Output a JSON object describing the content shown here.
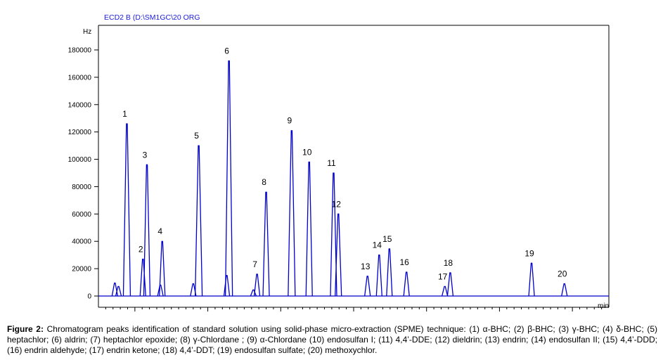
{
  "chart_data": {
    "type": "line",
    "title": "ECD2 B  (D:\\SM1GC\\20 ORG",
    "xlabel": "min",
    "ylabel": "Hz",
    "xlim": [
      13.0,
      27.0
    ],
    "ylim": [
      -2000,
      200000
    ],
    "x_ticks": [
      14,
      16,
      18,
      20,
      22,
      24,
      26
    ],
    "y_ticks": [
      0,
      20000,
      40000,
      60000,
      80000,
      100000,
      120000,
      140000,
      160000,
      180000
    ],
    "y_tick_labels": [
      "0",
      "20000",
      "40000",
      "60000",
      "80000",
      "100000",
      "120000",
      "140000",
      "160000",
      "180000"
    ],
    "grid": false,
    "colors": {
      "trace": "#0000cc",
      "axis": "#000000",
      "header": "#1a1adc",
      "baseline": "#0000cc"
    },
    "peaks": [
      {
        "label": "1",
        "x": 13.78,
        "y": 126000
      },
      {
        "label": "2",
        "x": 14.22,
        "y": 27000
      },
      {
        "label": "3",
        "x": 14.33,
        "y": 96000
      },
      {
        "label": "4",
        "x": 14.75,
        "y": 40000
      },
      {
        "label": "5",
        "x": 15.75,
        "y": 110000
      },
      {
        "label": "6",
        "x": 16.58,
        "y": 172000
      },
      {
        "label": "7",
        "x": 17.35,
        "y": 16000
      },
      {
        "label": "8",
        "x": 17.6,
        "y": 76000
      },
      {
        "label": "9",
        "x": 18.3,
        "y": 121000
      },
      {
        "label": "10",
        "x": 18.78,
        "y": 98000
      },
      {
        "label": "11",
        "x": 19.45,
        "y": 90000
      },
      {
        "label": "12",
        "x": 19.58,
        "y": 60000
      },
      {
        "label": "13",
        "x": 20.38,
        "y": 14500
      },
      {
        "label": "14",
        "x": 20.7,
        "y": 30000
      },
      {
        "label": "15",
        "x": 20.98,
        "y": 34500
      },
      {
        "label": "16",
        "x": 21.45,
        "y": 17500
      },
      {
        "label": "17",
        "x": 22.5,
        "y": 7000
      },
      {
        "label": "18",
        "x": 22.65,
        "y": 17000
      },
      {
        "label": "19",
        "x": 24.88,
        "y": 24000
      },
      {
        "label": "20",
        "x": 25.78,
        "y": 9000
      }
    ],
    "minor_peaks": [
      {
        "x": 13.45,
        "y": 9500
      },
      {
        "x": 13.55,
        "y": 7000
      },
      {
        "x": 14.7,
        "y": 8000
      },
      {
        "x": 15.6,
        "y": 9000
      },
      {
        "x": 16.52,
        "y": 15000
      },
      {
        "x": 17.25,
        "y": 4500
      }
    ]
  },
  "caption": {
    "prefix": "Figure 2:",
    "text": "Chromatogram peaks identification of standard solution using solid-phase micro-extraction (SPME) technique: (1) α-BHC; (2) β-BHC; (3) γ-BHC; (4) δ-BHC; (5) heptachlor; (6) aldrin; (7) heptachlor epoxide; (8) γ-Chlordane ; (9) α-Chlordane (10) endosulfan I; (11) 4,4’-DDE; (12) dieldrin; (13) endrin; (14) endosulfan II; (15) 4,4’-DDD; (16) endrin aldehyde; (17) endrin ketone; (18) 4,4’-DDT; (19) endosulfan sulfate; (20) methoxychlor."
  }
}
